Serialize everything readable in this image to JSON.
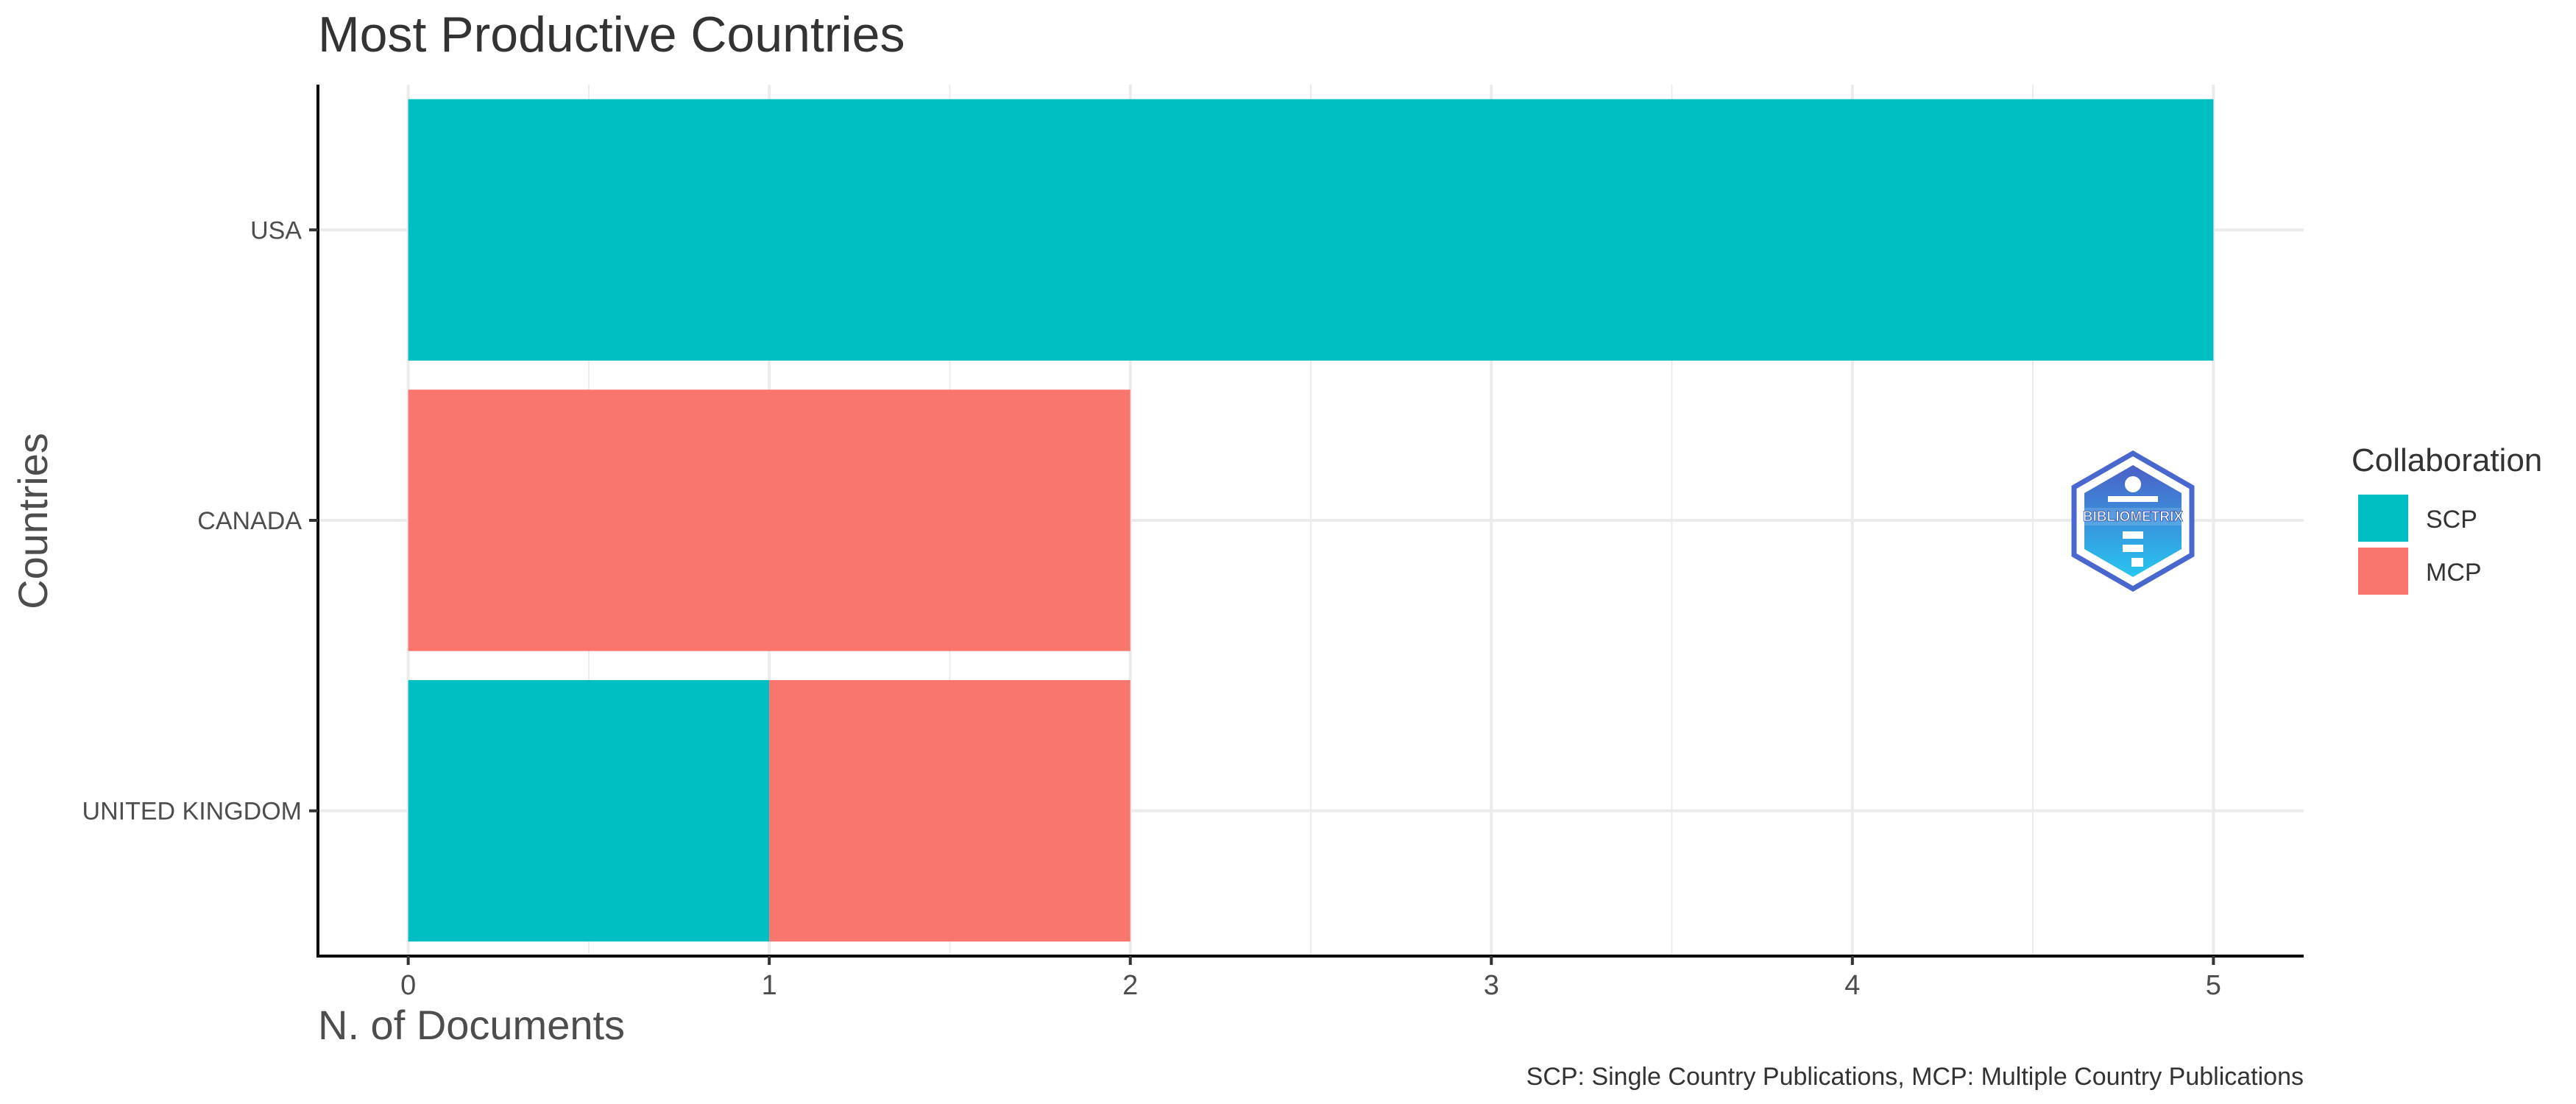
{
  "chart_data": {
    "type": "bar",
    "orientation": "horizontal",
    "stacked": true,
    "title": "Most Productive Countries",
    "xlabel": "N. of Documents",
    "ylabel": "Countries",
    "categories": [
      "USA",
      "CANADA",
      "UNITED KINGDOM"
    ],
    "series": [
      {
        "name": "SCP",
        "values": [
          5,
          0,
          1
        ],
        "color": "#00BFC4"
      },
      {
        "name": "MCP",
        "values": [
          0,
          2,
          1
        ],
        "color": "#F8766D"
      }
    ],
    "xlim": [
      -0.25,
      5.25
    ],
    "xticks": [
      0,
      1,
      2,
      3,
      4,
      5
    ],
    "grid": true,
    "legend": {
      "title": "Collaboration",
      "position": "right",
      "entries": [
        "SCP",
        "MCP"
      ]
    },
    "caption": "SCP: Single Country Publications, MCP: Multiple Country Publications"
  },
  "logo": {
    "text": "BIBLIOMETRIX",
    "icon": "bibliometrix-logo-icon"
  }
}
